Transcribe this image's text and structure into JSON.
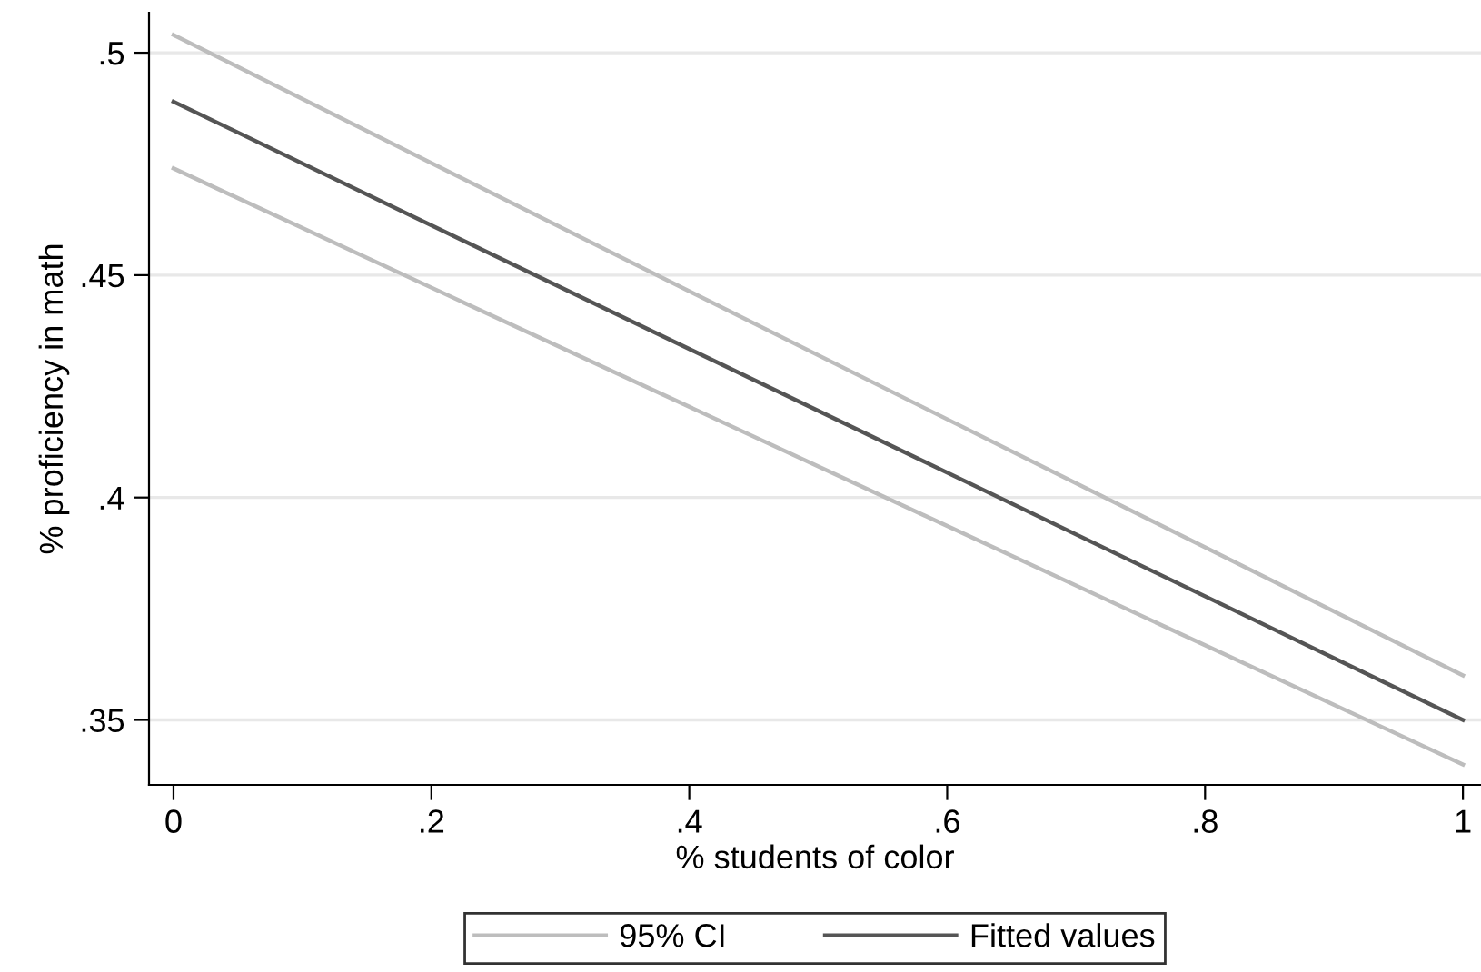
{
  "chart_data": {
    "type": "line",
    "xlabel": "% students of color",
    "ylabel": "% proficiency in math",
    "x": [
      0,
      1
    ],
    "series": [
      {
        "name": "95% CI",
        "color": "#bdbdbd",
        "values": [
          0.504,
          0.36
        ]
      },
      {
        "color": "#bdbdbd",
        "values": [
          0.474,
          0.34
        ]
      },
      {
        "name": "Fitted values",
        "color": "#555555",
        "values": [
          0.489,
          0.35
        ]
      }
    ],
    "xlim": [
      -0.019,
      1.014
    ],
    "ylim": [
      0.3354,
      0.509
    ],
    "xticks": [
      {
        "value": 0,
        "label": "0"
      },
      {
        "value": 0.2,
        "label": ".2"
      },
      {
        "value": 0.4,
        "label": ".4"
      },
      {
        "value": 0.6,
        "label": ".6"
      },
      {
        "value": 0.8,
        "label": ".8"
      },
      {
        "value": 1,
        "label": "1"
      }
    ],
    "yticks": [
      {
        "value": 0.35,
        "label": ".35"
      },
      {
        "value": 0.4,
        "label": ".4"
      },
      {
        "value": 0.45,
        "label": ".45"
      },
      {
        "value": 0.5,
        "label": ".5"
      }
    ],
    "grid": "y",
    "legend": "bottom",
    "marker": "none",
    "line_style": "solid"
  }
}
